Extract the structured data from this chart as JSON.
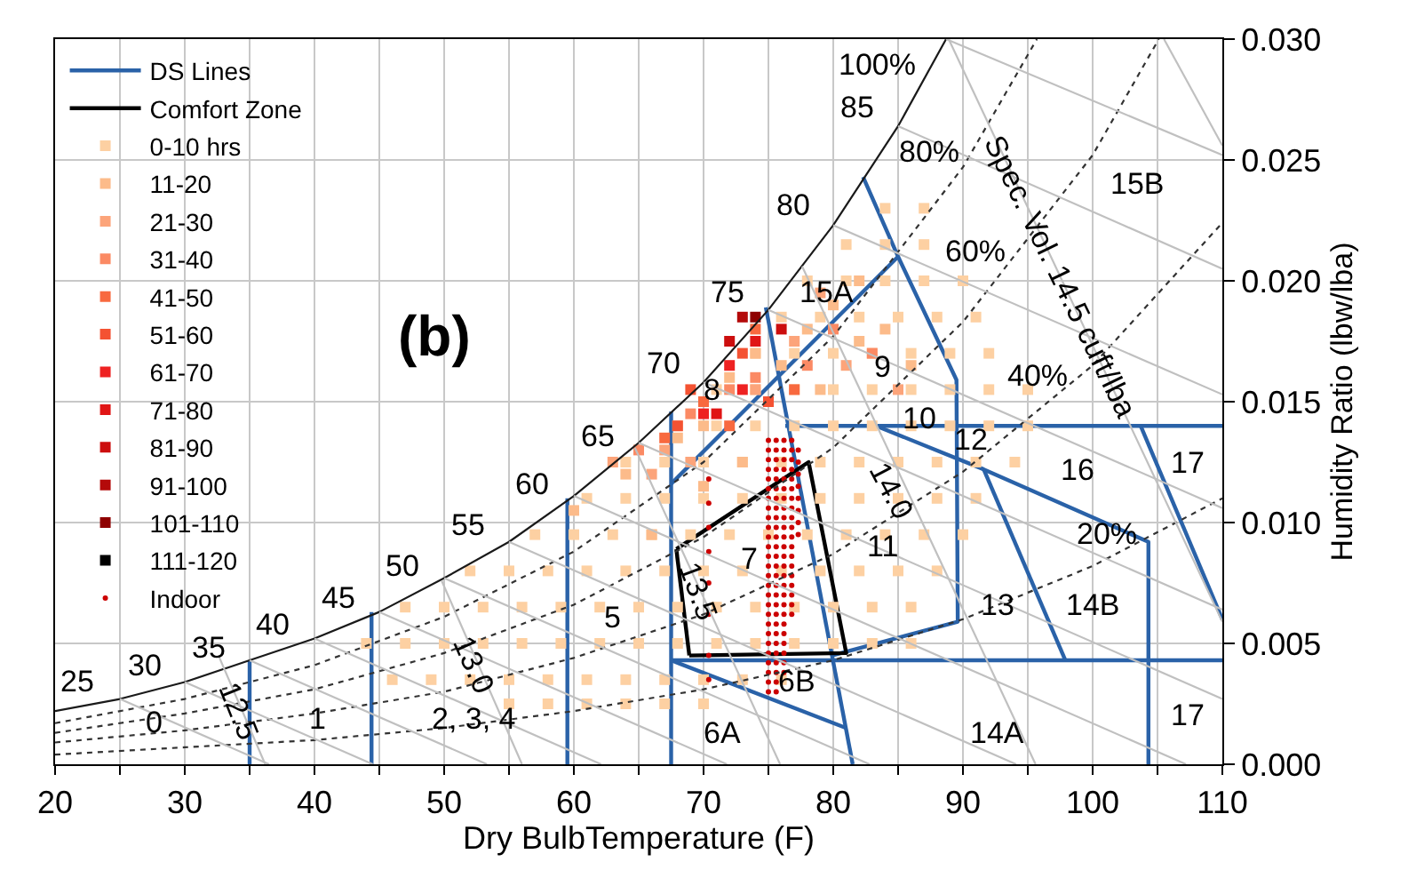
{
  "chart_data": {
    "type": "scatter",
    "xlabel": "Dry BulbTemperature (F)",
    "ylabel": "Humidity Ratio (lbw/lba)",
    "xlim": [
      20,
      110
    ],
    "ylim": [
      0,
      0.03
    ],
    "xticks": [
      20,
      {
        "value": 25,
        "label": null
      },
      30,
      {
        "value": 35,
        "label": null
      },
      40,
      {
        "value": 45,
        "label": null
      },
      50,
      {
        "value": 55,
        "label": null
      },
      60,
      {
        "value": 65,
        "label": null
      },
      70,
      {
        "value": 75,
        "label": null
      },
      80,
      {
        "value": 85,
        "label": null
      },
      90,
      {
        "value": 95,
        "label": null
      },
      100,
      {
        "value": 105,
        "label": null
      },
      110
    ],
    "yticks": [
      {
        "value": 0,
        "label": "0.000"
      },
      {
        "value": 0.005,
        "label": "0.005"
      },
      {
        "value": 0.01,
        "label": "0.010"
      },
      {
        "value": 0.015,
        "label": "0.015"
      },
      {
        "value": 0.02,
        "label": "0.020"
      },
      {
        "value": 0.025,
        "label": "0.025"
      },
      {
        "value": 0.03,
        "label": "0.030"
      }
    ],
    "grid": true,
    "legend": "top left",
    "series": [
      {
        "name": "DS Lines",
        "type": "line",
        "color": "#2a62a8",
        "line_style": "solid",
        "x": [
          35,
          35,
          null,
          44.4,
          44.4,
          null,
          59.5,
          59.5,
          null,
          67.5,
          67.5,
          null,
          67.5,
          110,
          null,
          67.5,
          81.0,
          null,
          74.8,
          81.5,
          null,
          67.5,
          85.0,
          null,
          82.3,
          85.0,
          89.5,
          89.6,
          79.9,
          null,
          76.3,
          110,
          null,
          83.3,
          91.6,
          104.3,
          104.3,
          null,
          91.6,
          97.9,
          null,
          103.7,
          110
        ],
        "values": [
          0,
          0.0043,
          null,
          0,
          0.0063,
          null,
          0,
          0.011,
          null,
          0,
          0.0146,
          null,
          0.0043,
          0.0043,
          null,
          0.0043,
          0.0015,
          null,
          0.0189,
          0,
          null,
          0.0116,
          0.021,
          null,
          0.0243,
          0.021,
          0.0159,
          0.0059,
          0.0045,
          null,
          0.014,
          0.014,
          null,
          0.014,
          0.0122,
          0.0092,
          0,
          null,
          0.0122,
          0.0043,
          null,
          0.014,
          0.006
        ]
      },
      {
        "name": "Comfort Zone",
        "type": "line",
        "color": "#000000",
        "line_style": "solid",
        "x": [
          67.9,
          78.1,
          81.0,
          68.9,
          null,
          68.9,
          67.9
        ],
        "values": [
          0.0089,
          0.0125,
          0.0046,
          0.0045,
          null,
          0.0045,
          0.0089
        ]
      },
      {
        "name": "0-10 hrs",
        "marker": "square",
        "color": "#fdd0a2",
        "x": [
          55,
          58,
          61,
          64,
          67,
          70,
          46,
          49,
          52,
          55,
          58,
          61,
          64,
          67,
          70,
          73,
          76,
          44,
          47,
          50,
          53,
          56,
          59,
          62,
          65,
          68,
          71,
          74,
          77,
          80,
          83,
          86,
          47,
          50,
          53,
          56,
          59,
          62,
          65,
          68,
          71,
          74,
          77,
          80,
          83,
          86,
          52,
          55,
          58,
          61,
          64,
          67,
          70,
          73,
          76,
          79,
          82,
          85,
          88,
          57,
          60,
          63,
          66,
          69,
          72,
          75,
          78,
          81,
          84,
          87,
          90,
          61,
          64,
          67,
          70,
          73,
          76,
          79,
          82,
          85,
          88,
          91,
          64,
          67,
          70,
          73,
          76,
          79,
          82,
          85,
          88,
          91,
          94,
          68,
          71,
          74,
          77,
          80,
          83,
          86,
          89,
          92,
          95,
          71,
          74,
          77,
          80,
          83,
          86,
          89,
          92,
          95,
          74,
          77,
          80,
          83,
          86,
          89,
          92,
          76,
          79,
          82,
          85,
          88,
          91,
          78,
          81,
          84,
          87,
          90,
          81,
          84,
          87,
          84,
          87
        ],
        "values": [
          0.0025,
          0.0025,
          0.0025,
          0.0025,
          0.0025,
          0.0025,
          0.0035,
          0.0035,
          0.0035,
          0.0035,
          0.0035,
          0.0035,
          0.0035,
          0.0035,
          0.0035,
          0.0035,
          0.0035,
          0.005,
          0.005,
          0.005,
          0.005,
          0.005,
          0.005,
          0.005,
          0.005,
          0.005,
          0.005,
          0.005,
          0.005,
          0.005,
          0.005,
          0.005,
          0.0065,
          0.0065,
          0.0065,
          0.0065,
          0.0065,
          0.0065,
          0.0065,
          0.0065,
          0.0065,
          0.0065,
          0.0065,
          0.0065,
          0.0065,
          0.0065,
          0.008,
          0.008,
          0.008,
          0.008,
          0.008,
          0.008,
          0.008,
          0.008,
          0.008,
          0.008,
          0.008,
          0.008,
          0.008,
          0.0095,
          0.0095,
          0.0095,
          0.0095,
          0.0095,
          0.0095,
          0.0095,
          0.0095,
          0.0095,
          0.0095,
          0.0095,
          0.0095,
          0.011,
          0.011,
          0.011,
          0.011,
          0.011,
          0.011,
          0.011,
          0.011,
          0.011,
          0.011,
          0.011,
          0.0125,
          0.0125,
          0.0125,
          0.0125,
          0.0125,
          0.0125,
          0.0125,
          0.0125,
          0.0125,
          0.0125,
          0.0125,
          0.014,
          0.014,
          0.014,
          0.014,
          0.014,
          0.014,
          0.014,
          0.014,
          0.014,
          0.014,
          0.0155,
          0.0155,
          0.0155,
          0.0155,
          0.0155,
          0.0155,
          0.0155,
          0.0155,
          0.0155,
          0.017,
          0.017,
          0.017,
          0.017,
          0.017,
          0.017,
          0.017,
          0.0185,
          0.0185,
          0.0185,
          0.0185,
          0.0185,
          0.0185,
          0.02,
          0.02,
          0.02,
          0.02,
          0.02,
          0.0215,
          0.0215,
          0.0215,
          0.023,
          0.023
        ]
      },
      {
        "name": "11-20",
        "marker": "square",
        "color": "#fcbb8a",
        "x": [
          60,
          64,
          68,
          70,
          72,
          74,
          76,
          78,
          80,
          82,
          84,
          70,
          66,
          79,
          86,
          82,
          73
        ],
        "values": [
          0.0105,
          0.012,
          0.0135,
          0.014,
          0.016,
          0.017,
          0.0165,
          0.018,
          0.019,
          0.0175,
          0.018,
          0.0115,
          0.0095,
          0.0155,
          0.0165,
          0.02,
          0.0125
        ]
      },
      {
        "name": "21-30",
        "marker": "square",
        "color": "#fca47a",
        "x": [
          63,
          67,
          66,
          74,
          77,
          81,
          69,
          79,
          85
        ],
        "values": [
          0.0125,
          0.013,
          0.012,
          0.0155,
          0.0175,
          0.0165,
          0.0125,
          0.0195,
          0.0155
        ]
      },
      {
        "name": "31-40",
        "marker": "square",
        "color": "#fb8a64",
        "x": [
          65,
          69,
          72,
          74,
          78,
          80,
          83
        ],
        "values": [
          0.013,
          0.0145,
          0.0155,
          0.016,
          0.0165,
          0.018,
          0.017
        ]
      },
      {
        "name": "41-50",
        "marker": "square",
        "color": "#f8693f",
        "x": [
          67,
          70,
          72,
          74,
          77
        ],
        "values": [
          0.0135,
          0.015,
          0.014,
          0.018,
          0.0155
        ]
      },
      {
        "name": "51-60",
        "marker": "square",
        "color": "#f45232",
        "x": [
          68,
          69,
          73,
          75
        ],
        "values": [
          0.014,
          0.0155,
          0.017,
          0.015
        ]
      },
      {
        "name": "61-70",
        "marker": "square",
        "color": "#ee2222",
        "x": [
          70,
          72,
          73
        ],
        "values": [
          0.0145,
          0.0165,
          0.0155
        ]
      },
      {
        "name": "71-80",
        "marker": "square",
        "color": "#e01515",
        "x": [
          71,
          74
        ],
        "values": [
          0.0145,
          0.0175
        ]
      },
      {
        "name": "81-90",
        "marker": "square",
        "color": "#cc0e0e",
        "x": [
          72,
          76
        ],
        "values": [
          0.0175,
          0.018
        ]
      },
      {
        "name": "91-100",
        "marker": "square",
        "color": "#b40a0a",
        "x": [
          73
        ],
        "values": [
          0.0185
        ]
      },
      {
        "name": "101-110",
        "marker": "square",
        "color": "#8e0000",
        "x": [
          74
        ],
        "values": [
          0.0185
        ]
      },
      {
        "name": "111-120",
        "marker": "square",
        "color": "#000000",
        "x": [
          null
        ],
        "values": [
          null
        ]
      },
      {
        "name": "Indoor",
        "marker": "circle",
        "color": "#cc0000",
        "x": [
          75.0,
          75.0,
          75.0,
          75.0,
          75.0,
          75.0,
          75.0,
          75.0,
          75.0,
          75.0,
          75.0,
          75.0,
          75.0,
          75.0,
          75.0,
          75.0,
          75.0,
          75.0,
          75.0,
          75.0,
          75.0,
          75.0,
          75.0,
          75.0,
          75.0,
          75.0,
          75.0,
          75.6,
          75.6,
          75.6,
          75.6,
          75.6,
          75.6,
          75.6,
          75.6,
          75.6,
          75.6,
          75.6,
          75.6,
          75.6,
          75.6,
          75.6,
          75.6,
          75.6,
          75.6,
          75.6,
          75.6,
          75.6,
          75.6,
          75.6,
          75.6,
          75.6,
          75.6,
          75.6,
          76.2,
          76.2,
          76.2,
          76.2,
          76.2,
          76.2,
          76.2,
          76.2,
          76.2,
          76.2,
          76.2,
          76.2,
          76.2,
          76.2,
          76.2,
          76.2,
          76.2,
          76.2,
          76.2,
          76.2,
          76.2,
          76.2,
          76.2,
          76.2,
          76.2,
          76.8,
          76.8,
          76.8,
          76.8,
          76.8,
          76.8,
          76.8,
          76.8,
          76.8,
          76.8,
          76.8,
          76.8,
          76.8,
          76.8,
          76.8,
          76.8,
          76.8,
          76.8,
          76.8,
          77.3,
          77.3,
          77.3,
          77.3,
          77.3,
          77.3,
          77.3,
          77.3,
          70.4,
          70.4,
          70.4,
          70.4,
          70.4,
          70.4,
          70.4,
          70.4
        ],
        "values": [
          0.003,
          0.0034,
          0.0038,
          0.0042,
          0.0046,
          0.005,
          0.0054,
          0.0058,
          0.0062,
          0.0066,
          0.007,
          0.0074,
          0.0078,
          0.0082,
          0.0086,
          0.009,
          0.0094,
          0.0098,
          0.0102,
          0.0106,
          0.011,
          0.0114,
          0.0118,
          0.0122,
          0.0126,
          0.013,
          0.0134,
          0.003,
          0.0034,
          0.0038,
          0.0042,
          0.0046,
          0.005,
          0.0054,
          0.0058,
          0.0062,
          0.0066,
          0.007,
          0.0074,
          0.0078,
          0.0082,
          0.0086,
          0.009,
          0.0094,
          0.0098,
          0.0102,
          0.0106,
          0.011,
          0.0114,
          0.0118,
          0.0122,
          0.0126,
          0.013,
          0.0134,
          0.0038,
          0.0042,
          0.0046,
          0.005,
          0.0054,
          0.0058,
          0.0062,
          0.0066,
          0.007,
          0.0074,
          0.0078,
          0.0082,
          0.0086,
          0.009,
          0.0094,
          0.0098,
          0.0102,
          0.0106,
          0.011,
          0.0114,
          0.0118,
          0.0122,
          0.0126,
          0.013,
          0.0134,
          0.0062,
          0.0066,
          0.007,
          0.0074,
          0.0078,
          0.0082,
          0.0086,
          0.009,
          0.0094,
          0.0098,
          0.0102,
          0.0106,
          0.011,
          0.0114,
          0.0118,
          0.0122,
          0.0126,
          0.013,
          0.0134,
          0.0095,
          0.01,
          0.0105,
          0.011,
          0.0115,
          0.012,
          0.0125,
          0.013,
          0.0035,
          0.0045,
          0.0062,
          0.0075,
          0.0088,
          0.0098,
          0.0108,
          0.0118
        ]
      },
      {
        "type": "line",
        "color": "#1a1a1a",
        "line_style": "solid",
        "x": [
          20,
          25,
          30,
          35,
          40,
          45,
          50,
          55,
          60,
          65,
          70,
          75,
          80,
          85,
          88.7
        ],
        "values": [
          0.0022,
          0.0027,
          0.0034,
          0.0043,
          0.0052,
          0.0063,
          0.0077,
          0.0092,
          0.0111,
          0.0133,
          0.0158,
          0.0188,
          0.0223,
          0.0264,
          0.03
        ]
      },
      {
        "type": "line",
        "color": "#333333",
        "line_style": "dotted",
        "x": [
          20,
          30,
          40,
          50,
          60,
          70,
          80,
          90,
          100,
          110,
          null,
          20,
          30,
          40,
          50,
          60,
          70,
          80,
          90,
          100,
          110,
          null,
          20,
          30,
          40,
          50,
          60,
          70,
          80,
          90,
          100,
          105.1,
          null,
          20,
          30,
          40,
          50,
          60,
          70,
          80,
          90,
          95.7
        ],
        "values": [
          0.0004,
          0.0007,
          0.001,
          0.0015,
          0.0022,
          0.0031,
          0.0043,
          0.006,
          0.0082,
          0.011,
          null,
          0.0009,
          0.0014,
          0.0021,
          0.003,
          0.0044,
          0.0062,
          0.0087,
          0.0121,
          0.0165,
          0.0224,
          null,
          0.0013,
          0.0021,
          0.0031,
          0.0046,
          0.0066,
          0.0094,
          0.0131,
          0.0183,
          0.0252,
          0.03,
          null,
          0.0017,
          0.0027,
          0.0041,
          0.0061,
          0.0088,
          0.0125,
          0.0177,
          0.0247,
          0.03
        ]
      },
      {
        "type": "line",
        "color": "#c0c0c0",
        "line_style": "solid",
        "x": [
          88.7,
          110,
          null,
          25,
          36.5,
          null,
          30,
          44.5,
          null,
          35,
          53.3,
          null,
          40,
          62.1,
          null,
          45,
          71.8,
          null,
          50,
          82.8,
          null,
          55,
          94.1,
          null,
          60,
          107.2,
          null,
          65,
          110,
          null,
          70,
          110,
          null,
          75,
          110,
          null,
          80,
          110,
          null,
          85,
          110,
          null,
          32.6,
          36.2,
          null,
          49.8,
          56.0,
          null,
          64.7,
          75.9,
          null,
          77.6,
          95.6,
          null,
          88.9,
          110,
          null,
          105.5,
          110
        ],
        "values": [
          0.03,
          0.0252,
          null,
          0.0027,
          0,
          null,
          0.0034,
          0,
          null,
          0.0043,
          0,
          null,
          0.0052,
          0,
          null,
          0.0063,
          0,
          null,
          0.0077,
          0,
          null,
          0.0092,
          0,
          null,
          0.0111,
          0,
          null,
          0.0133,
          0.0027,
          null,
          0.0158,
          0.0064,
          null,
          0.0188,
          0.0106,
          null,
          0.0223,
          0.0153,
          null,
          0.0264,
          0.0205,
          null,
          0.0045,
          0,
          null,
          0.0076,
          0,
          null,
          0.0131,
          0,
          null,
          0.0206,
          0,
          null,
          0.03,
          0.0059,
          null,
          0.03,
          0.0256
        ]
      }
    ],
    "annotations": [
      "(b)",
      "25",
      "30",
      "35",
      "40",
      "45",
      "50",
      "55",
      "60",
      "65",
      "70",
      "75",
      "80",
      "85",
      "100%",
      "80%",
      "60%",
      "40%",
      "20%",
      "15B",
      "15A",
      "9",
      "8",
      "10",
      "12",
      "16",
      "17",
      "11",
      "7",
      "5",
      "13",
      "14B",
      "6B",
      "6A",
      "14A",
      "17",
      "0",
      "1",
      "2, 3, 4",
      "12.5",
      "13.0",
      "13.5",
      "14.0",
      "Spec. Vol. 14.5 cuft/lba"
    ]
  }
}
